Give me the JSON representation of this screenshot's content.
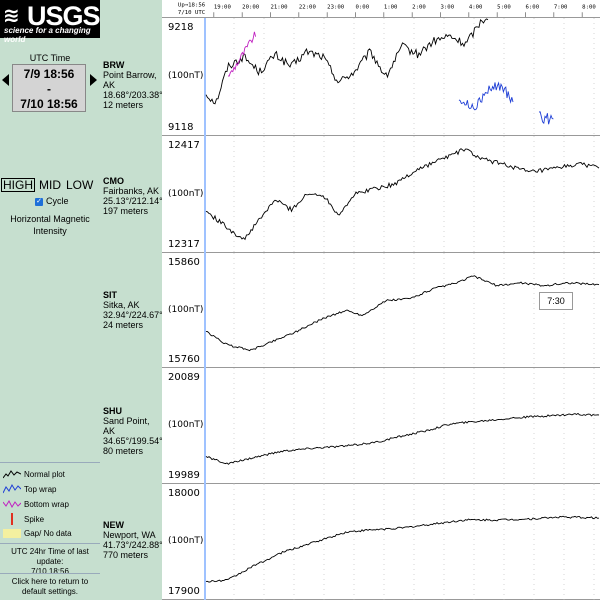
{
  "logo": {
    "mark": "≋",
    "word": "USGS",
    "tagline": "science for a changing world"
  },
  "time_control": {
    "label": "UTC Time",
    "start": "7/9 18:56",
    "separator": "-",
    "end": "7/10 18:56"
  },
  "sensitivity": {
    "high": "HIGH",
    "mid": "MID",
    "low": "LOW",
    "selected": "HIGH"
  },
  "cycle": {
    "label": "Cycle",
    "checked": true
  },
  "mode_label": "Horizontal Magnetic Intensity",
  "legend": [
    {
      "label": "Normal plot",
      "color": "#000000"
    },
    {
      "label": "Top wrap",
      "color": "#1f3fd6"
    },
    {
      "label": "Bottom wrap",
      "color": "#c020c0"
    },
    {
      "label": "Spike",
      "color": "#e03020"
    },
    {
      "label": "Gap/ No data",
      "color": "#f4f0a0"
    }
  ],
  "last_update": {
    "label": "UTC 24hr Time of last update:",
    "value": "7/10 18:56"
  },
  "reset_link": "Click here to return to default settings.",
  "time_axis": {
    "date_label": "7/10 UTC",
    "start_marker": "Up→18:56",
    "ticks": [
      "19:00",
      "20:00",
      "21:00",
      "22:00",
      "23:00",
      "0:00",
      "1:00",
      "2:00",
      "3:00",
      "4:00",
      "5:00",
      "6:00",
      "7:00",
      "8:00"
    ]
  },
  "colors": {
    "panel_bg": "#c6dfcf",
    "normal": "#000000",
    "top_wrap": "#1f3fd6",
    "bottom_wrap": "#c020c0",
    "cursor": "#9fc2ff"
  },
  "tooltip": "7:30",
  "stations": [
    {
      "code": "BRW",
      "name": "Point Barrow, AK",
      "coords": "18.68°/203.38°",
      "elev": "12 meters",
      "ymax": "9218",
      "ymin": "9118",
      "unit": "(100nT)"
    },
    {
      "code": "CMO",
      "name": "Fairbanks, AK",
      "coords": "25.13°/212.14°",
      "elev": "197 meters",
      "ymax": "12417",
      "ymin": "12317",
      "unit": "(100nT)"
    },
    {
      "code": "SIT",
      "name": "Sitka, AK",
      "coords": "32.94°/224.67°",
      "elev": "24 meters",
      "ymax": "15860",
      "ymin": "15760",
      "unit": "(100nT)"
    },
    {
      "code": "SHU",
      "name": "Sand Point, AK",
      "coords": "34.65°/199.54°",
      "elev": "80 meters",
      "ymax": "20089",
      "ymin": "19989",
      "unit": "(100nT)"
    },
    {
      "code": "NEW",
      "name": "Newport, WA",
      "coords": "41.73°/242.88°",
      "elev": "770 meters",
      "ymax": "18000",
      "ymin": "17900",
      "unit": "(100nT)"
    }
  ]
}
